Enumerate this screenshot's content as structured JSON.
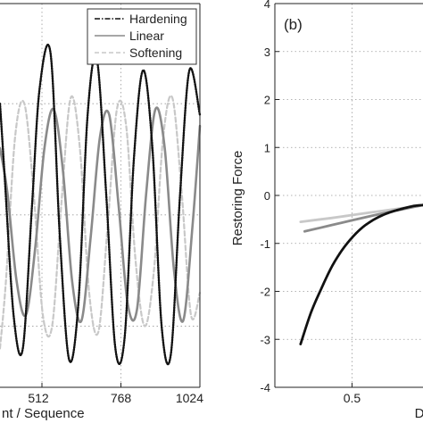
{
  "chart_data": [
    {
      "type": "line",
      "panel": "left",
      "xlabel": "nt / Sequence",
      "ylabel": "",
      "xlim": [
        376,
        1024
      ],
      "ylim": [
        -1.55,
        1.9
      ],
      "x_ticks": [
        512,
        768,
        1024
      ],
      "x_tick_labels": [
        "512",
        "768",
        "1024"
      ],
      "grid": true,
      "legend_position": "top-right",
      "series": [
        {
          "name": "Hardening",
          "color": "#111111",
          "line_style": "dash-dot with markers",
          "x": [
            376,
            390,
            420,
            450,
            480,
            505,
            540,
            570,
            600,
            630,
            660,
            690,
            720,
            750,
            780,
            810,
            840,
            870,
            900,
            930,
            960,
            990,
            1024
          ],
          "values": [
            1.0,
            0.4,
            -0.9,
            -1.2,
            0.1,
            1.15,
            1.45,
            -0.2,
            -1.3,
            -0.8,
            0.9,
            1.4,
            0.2,
            -1.2,
            -1.1,
            0.5,
            1.3,
            0.6,
            -1.0,
            -1.25,
            0.2,
            1.3,
            0.9
          ]
        },
        {
          "name": "Linear",
          "color": "#8a8a8a",
          "line_style": "solid with markers",
          "x": [
            376,
            400,
            430,
            460,
            490,
            520,
            550,
            580,
            610,
            640,
            670,
            700,
            730,
            760,
            790,
            820,
            850,
            880,
            910,
            940,
            970,
            1000,
            1024
          ],
          "values": [
            0.6,
            0.2,
            -0.6,
            -0.9,
            -0.3,
            0.6,
            0.95,
            0.4,
            -0.6,
            -0.95,
            -0.2,
            0.7,
            0.9,
            0.1,
            -0.8,
            -0.85,
            0.2,
            0.95,
            0.6,
            -0.5,
            -0.95,
            -0.1,
            0.8
          ]
        },
        {
          "name": "Softening",
          "color": "#c8c8c8",
          "line_style": "dashed",
          "x": [
            376,
            395,
            425,
            455,
            485,
            515,
            545,
            575,
            605,
            635,
            665,
            695,
            725,
            755,
            785,
            815,
            845,
            875,
            905,
            935,
            965,
            995,
            1024
          ],
          "values": [
            -1.2,
            -0.6,
            0.7,
            1.0,
            0.2,
            -0.9,
            -1.0,
            0.1,
            1.05,
            0.6,
            -0.7,
            -1.05,
            -0.1,
            0.95,
            0.8,
            -0.4,
            -1.0,
            -0.5,
            0.7,
            1.05,
            0.2,
            -0.9,
            -0.7
          ]
        }
      ]
    },
    {
      "type": "scatter",
      "panel": "right",
      "panel_label": "(b)",
      "xlabel": "D",
      "ylabel": "Restoring Force",
      "xlim": [
        0.125,
        0.845
      ],
      "ylim": [
        -4,
        4
      ],
      "x_ticks": [
        0.5
      ],
      "x_tick_labels": [
        "0.5"
      ],
      "y_ticks": [
        -4,
        -3,
        -2,
        -1,
        0,
        1,
        2,
        3,
        4
      ],
      "y_tick_labels": [
        "-4",
        "-3",
        "-2",
        "-1",
        "0",
        "1",
        "2",
        "3",
        "4"
      ],
      "grid": true,
      "series": [
        {
          "color": "#111111",
          "x": [
            0.25,
            0.3,
            0.35,
            0.4,
            0.45,
            0.5,
            0.55,
            0.6,
            0.65,
            0.7,
            0.75,
            0.8,
            0.845
          ],
          "values": [
            -3.1,
            -2.45,
            -1.95,
            -1.5,
            -1.15,
            -0.88,
            -0.67,
            -0.52,
            -0.41,
            -0.33,
            -0.27,
            -0.22,
            -0.2
          ]
        },
        {
          "color": "#8a8a8a",
          "x": [
            0.27,
            0.4,
            0.5,
            0.6,
            0.7,
            0.8,
            0.845
          ],
          "values": [
            -0.75,
            -0.62,
            -0.52,
            -0.42,
            -0.33,
            -0.24,
            -0.2
          ]
        },
        {
          "color": "#c8c8c8",
          "x": [
            0.25,
            0.4,
            0.5,
            0.6,
            0.7,
            0.8,
            0.845
          ],
          "values": [
            -0.55,
            -0.47,
            -0.41,
            -0.35,
            -0.29,
            -0.23,
            -0.2
          ]
        }
      ]
    }
  ]
}
